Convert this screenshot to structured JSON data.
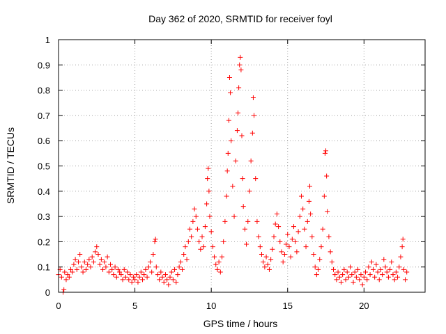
{
  "chart_data": {
    "type": "scatter",
    "title": "Day 362 of 2020, SRMTID for receiver foyl",
    "xlabel": "GPS time / hours",
    "ylabel": "SRMTID / TECUs",
    "xlim": [
      0,
      24
    ],
    "ylim": [
      0,
      1
    ],
    "x_ticks": [
      0,
      5,
      10,
      15,
      20
    ],
    "x_tick_labels": [
      "0",
      "5",
      "10",
      "15",
      "20"
    ],
    "y_ticks": [
      0,
      0.1,
      0.2,
      0.3,
      0.4,
      0.5,
      0.6,
      0.7,
      0.8,
      0.9,
      1
    ],
    "y_tick_labels": [
      "0",
      "0.1",
      "0.2",
      "0.3",
      "0.4",
      "0.5",
      "0.6",
      "0.7",
      "0.8",
      "0.9",
      "1"
    ],
    "grid": true,
    "marker": "+",
    "color": "#ff0000",
    "series": [
      {
        "name": "SRMTID",
        "points": [
          [
            0.0,
            0.07
          ],
          [
            0.1,
            0.09
          ],
          [
            0.2,
            0.06
          ],
          [
            0.3,
            0.0
          ],
          [
            0.35,
            0.01
          ],
          [
            0.4,
            0.08
          ],
          [
            0.5,
            0.05
          ],
          [
            0.6,
            0.07
          ],
          [
            0.7,
            0.06
          ],
          [
            0.8,
            0.09
          ],
          [
            0.9,
            0.08
          ],
          [
            1.0,
            0.11
          ],
          [
            1.1,
            0.13
          ],
          [
            1.2,
            0.09
          ],
          [
            1.3,
            0.12
          ],
          [
            1.4,
            0.15
          ],
          [
            1.5,
            0.1
          ],
          [
            1.6,
            0.08
          ],
          [
            1.7,
            0.12
          ],
          [
            1.8,
            0.09
          ],
          [
            1.9,
            0.11
          ],
          [
            2.0,
            0.13
          ],
          [
            2.1,
            0.1
          ],
          [
            2.2,
            0.14
          ],
          [
            2.3,
            0.12
          ],
          [
            2.4,
            0.16
          ],
          [
            2.5,
            0.18
          ],
          [
            2.6,
            0.15
          ],
          [
            2.7,
            0.11
          ],
          [
            2.8,
            0.13
          ],
          [
            2.9,
            0.09
          ],
          [
            3.0,
            0.12
          ],
          [
            3.1,
            0.1
          ],
          [
            3.2,
            0.14
          ],
          [
            3.3,
            0.08
          ],
          [
            3.4,
            0.11
          ],
          [
            3.5,
            0.09
          ],
          [
            3.6,
            0.07
          ],
          [
            3.7,
            0.1
          ],
          [
            3.8,
            0.06
          ],
          [
            3.9,
            0.09
          ],
          [
            4.0,
            0.08
          ],
          [
            4.1,
            0.07
          ],
          [
            4.2,
            0.05
          ],
          [
            4.3,
            0.09
          ],
          [
            4.4,
            0.06
          ],
          [
            4.5,
            0.08
          ],
          [
            4.6,
            0.05
          ],
          [
            4.7,
            0.07
          ],
          [
            4.8,
            0.04
          ],
          [
            4.9,
            0.06
          ],
          [
            5.0,
            0.05
          ],
          [
            5.1,
            0.07
          ],
          [
            5.2,
            0.04
          ],
          [
            5.3,
            0.06
          ],
          [
            5.4,
            0.08
          ],
          [
            5.5,
            0.05
          ],
          [
            5.6,
            0.07
          ],
          [
            5.7,
            0.09
          ],
          [
            5.8,
            0.06
          ],
          [
            5.9,
            0.1
          ],
          [
            6.0,
            0.12
          ],
          [
            6.1,
            0.08
          ],
          [
            6.2,
            0.15
          ],
          [
            6.3,
            0.2
          ],
          [
            6.35,
            0.21
          ],
          [
            6.4,
            0.1
          ],
          [
            6.5,
            0.07
          ],
          [
            6.6,
            0.05
          ],
          [
            6.7,
            0.08
          ],
          [
            6.8,
            0.06
          ],
          [
            6.9,
            0.04
          ],
          [
            7.0,
            0.07
          ],
          [
            7.1,
            0.05
          ],
          [
            7.2,
            0.03
          ],
          [
            7.3,
            0.06
          ],
          [
            7.4,
            0.08
          ],
          [
            7.5,
            0.05
          ],
          [
            7.6,
            0.09
          ],
          [
            7.7,
            0.04
          ],
          [
            7.8,
            0.07
          ],
          [
            7.9,
            0.1
          ],
          [
            8.0,
            0.12
          ],
          [
            8.1,
            0.09
          ],
          [
            8.2,
            0.15
          ],
          [
            8.3,
            0.18
          ],
          [
            8.4,
            0.13
          ],
          [
            8.5,
            0.2
          ],
          [
            8.6,
            0.25
          ],
          [
            8.7,
            0.22
          ],
          [
            8.8,
            0.28
          ],
          [
            8.9,
            0.33
          ],
          [
            9.0,
            0.3
          ],
          [
            9.1,
            0.25
          ],
          [
            9.2,
            0.2
          ],
          [
            9.3,
            0.17
          ],
          [
            9.4,
            0.22
          ],
          [
            9.5,
            0.18
          ],
          [
            9.6,
            0.26
          ],
          [
            9.7,
            0.35
          ],
          [
            9.75,
            0.45
          ],
          [
            9.8,
            0.49
          ],
          [
            9.85,
            0.4
          ],
          [
            9.9,
            0.3
          ],
          [
            10.0,
            0.24
          ],
          [
            10.1,
            0.18
          ],
          [
            10.2,
            0.14
          ],
          [
            10.3,
            0.11
          ],
          [
            10.4,
            0.09
          ],
          [
            10.5,
            0.12
          ],
          [
            10.6,
            0.08
          ],
          [
            10.7,
            0.14
          ],
          [
            10.8,
            0.2
          ],
          [
            10.9,
            0.28
          ],
          [
            11.0,
            0.38
          ],
          [
            11.05,
            0.48
          ],
          [
            11.1,
            0.55
          ],
          [
            11.15,
            0.68
          ],
          [
            11.2,
            0.85
          ],
          [
            11.25,
            0.79
          ],
          [
            11.3,
            0.6
          ],
          [
            11.4,
            0.42
          ],
          [
            11.5,
            0.3
          ],
          [
            11.6,
            0.52
          ],
          [
            11.7,
            0.64
          ],
          [
            11.75,
            0.71
          ],
          [
            11.8,
            0.81
          ],
          [
            11.85,
            0.9
          ],
          [
            11.9,
            0.93
          ],
          [
            11.95,
            0.88
          ],
          [
            12.0,
            0.62
          ],
          [
            12.05,
            0.45
          ],
          [
            12.1,
            0.34
          ],
          [
            12.2,
            0.25
          ],
          [
            12.3,
            0.19
          ],
          [
            12.4,
            0.28
          ],
          [
            12.5,
            0.4
          ],
          [
            12.6,
            0.52
          ],
          [
            12.7,
            0.63
          ],
          [
            12.75,
            0.77
          ],
          [
            12.8,
            0.7
          ],
          [
            12.9,
            0.45
          ],
          [
            13.0,
            0.28
          ],
          [
            13.1,
            0.22
          ],
          [
            13.2,
            0.18
          ],
          [
            13.3,
            0.15
          ],
          [
            13.4,
            0.12
          ],
          [
            13.5,
            0.1
          ],
          [
            13.6,
            0.14
          ],
          [
            13.7,
            0.11
          ],
          [
            13.8,
            0.09
          ],
          [
            13.9,
            0.13
          ],
          [
            14.0,
            0.17
          ],
          [
            14.1,
            0.22
          ],
          [
            14.2,
            0.27
          ],
          [
            14.3,
            0.31
          ],
          [
            14.4,
            0.26
          ],
          [
            14.5,
            0.2
          ],
          [
            14.6,
            0.16
          ],
          [
            14.7,
            0.12
          ],
          [
            14.8,
            0.15
          ],
          [
            14.9,
            0.19
          ],
          [
            15.0,
            0.23
          ],
          [
            15.1,
            0.18
          ],
          [
            15.2,
            0.14
          ],
          [
            15.3,
            0.21
          ],
          [
            15.4,
            0.26
          ],
          [
            15.5,
            0.2
          ],
          [
            15.6,
            0.16
          ],
          [
            15.7,
            0.24
          ],
          [
            15.8,
            0.3
          ],
          [
            15.9,
            0.38
          ],
          [
            16.0,
            0.33
          ],
          [
            16.1,
            0.25
          ],
          [
            16.2,
            0.18
          ],
          [
            16.3,
            0.28
          ],
          [
            16.4,
            0.36
          ],
          [
            16.45,
            0.42
          ],
          [
            16.5,
            0.31
          ],
          [
            16.6,
            0.22
          ],
          [
            16.7,
            0.15
          ],
          [
            16.8,
            0.1
          ],
          [
            16.9,
            0.07
          ],
          [
            17.0,
            0.09
          ],
          [
            17.1,
            0.13
          ],
          [
            17.2,
            0.18
          ],
          [
            17.3,
            0.25
          ],
          [
            17.4,
            0.38
          ],
          [
            17.45,
            0.55
          ],
          [
            17.5,
            0.56
          ],
          [
            17.55,
            0.46
          ],
          [
            17.6,
            0.32
          ],
          [
            17.7,
            0.22
          ],
          [
            17.8,
            0.16
          ],
          [
            17.9,
            0.12
          ],
          [
            18.0,
            0.09
          ],
          [
            18.1,
            0.07
          ],
          [
            18.2,
            0.05
          ],
          [
            18.3,
            0.08
          ],
          [
            18.4,
            0.06
          ],
          [
            18.5,
            0.04
          ],
          [
            18.6,
            0.07
          ],
          [
            18.7,
            0.09
          ],
          [
            18.8,
            0.05
          ],
          [
            18.9,
            0.08
          ],
          [
            19.0,
            0.06
          ],
          [
            19.1,
            0.1
          ],
          [
            19.2,
            0.07
          ],
          [
            19.3,
            0.04
          ],
          [
            19.4,
            0.08
          ],
          [
            19.5,
            0.06
          ],
          [
            19.6,
            0.09
          ],
          [
            19.7,
            0.05
          ],
          [
            19.8,
            0.07
          ],
          [
            19.9,
            0.03
          ],
          [
            20.0,
            0.06
          ],
          [
            20.1,
            0.08
          ],
          [
            20.2,
            0.05
          ],
          [
            20.3,
            0.1
          ],
          [
            20.4,
            0.07
          ],
          [
            20.5,
            0.12
          ],
          [
            20.6,
            0.09
          ],
          [
            20.7,
            0.06
          ],
          [
            20.8,
            0.11
          ],
          [
            20.9,
            0.08
          ],
          [
            21.0,
            0.05
          ],
          [
            21.1,
            0.09
          ],
          [
            21.2,
            0.07
          ],
          [
            21.3,
            0.13
          ],
          [
            21.4,
            0.1
          ],
          [
            21.5,
            0.08
          ],
          [
            21.6,
            0.06
          ],
          [
            21.7,
            0.09
          ],
          [
            21.8,
            0.12
          ],
          [
            21.9,
            0.07
          ],
          [
            22.0,
            0.05
          ],
          [
            22.1,
            0.08
          ],
          [
            22.2,
            0.06
          ],
          [
            22.3,
            0.1
          ],
          [
            22.4,
            0.14
          ],
          [
            22.5,
            0.18
          ],
          [
            22.55,
            0.21
          ],
          [
            22.6,
            0.09
          ],
          [
            22.7,
            0.05
          ],
          [
            22.8,
            0.08
          ]
        ]
      }
    ]
  }
}
